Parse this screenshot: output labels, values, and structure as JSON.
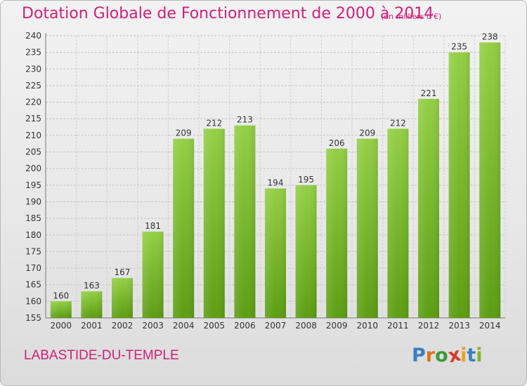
{
  "header": {
    "title": "Dotation Globale de Fonctionnement de 2000 à 2014",
    "unit": "(en milliers d'€)"
  },
  "footer": {
    "commune": "LABASTIDE-DU-TEMPLE",
    "logo_letters": [
      "P",
      "r",
      "o",
      "x",
      "i",
      "t",
      "i"
    ],
    "logo_colors": [
      "#3a7fc4",
      "#e0731d",
      "#3a9a3a",
      "#d53a2a",
      "#e8a21a",
      "#3a7fc4",
      "#7fb52a"
    ]
  },
  "colors": {
    "bar_top": "#93cf45",
    "bar_bottom": "#5c9d12",
    "accent": "#d0207a"
  },
  "chart_data": {
    "type": "bar",
    "categories": [
      "2000",
      "2001",
      "2002",
      "2003",
      "2004",
      "2005",
      "2006",
      "2007",
      "2008",
      "2009",
      "2010",
      "2011",
      "2012",
      "2013",
      "2014"
    ],
    "values": [
      160,
      163,
      167,
      181,
      209,
      212,
      213,
      194,
      195,
      206,
      209,
      212,
      221,
      235,
      238
    ],
    "ylim": [
      155,
      240
    ],
    "yticks": [
      155,
      160,
      165,
      170,
      175,
      180,
      185,
      190,
      195,
      200,
      205,
      210,
      215,
      220,
      225,
      230,
      235,
      240
    ],
    "grid": true,
    "data_labels": true
  }
}
